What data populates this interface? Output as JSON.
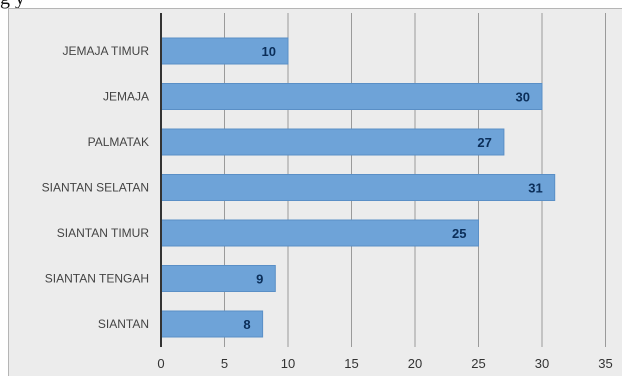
{
  "top_fragment": "g  y",
  "colors": {
    "bar": "#6ea3d8",
    "bar_edge": "#5a8fc6",
    "grid": "#9a9a9a",
    "axis": "#333333",
    "background": "#ececec"
  },
  "chart_data": {
    "type": "bar",
    "orientation": "horizontal",
    "categories": [
      "JEMAJA TIMUR",
      "JEMAJA",
      "PALMATAK",
      "SIANTAN SELATAN",
      "SIANTAN TIMUR",
      "SIANTAN TENGAH",
      "SIANTAN"
    ],
    "values": [
      10,
      30,
      27,
      31,
      25,
      9,
      8
    ],
    "xlim": [
      0,
      35
    ],
    "xticks": [
      "0",
      "5",
      "10",
      "15",
      "20",
      "25",
      "30",
      "35"
    ],
    "title": "",
    "xlabel": "",
    "ylabel": "",
    "grid": "vertical",
    "data_labels": true
  }
}
